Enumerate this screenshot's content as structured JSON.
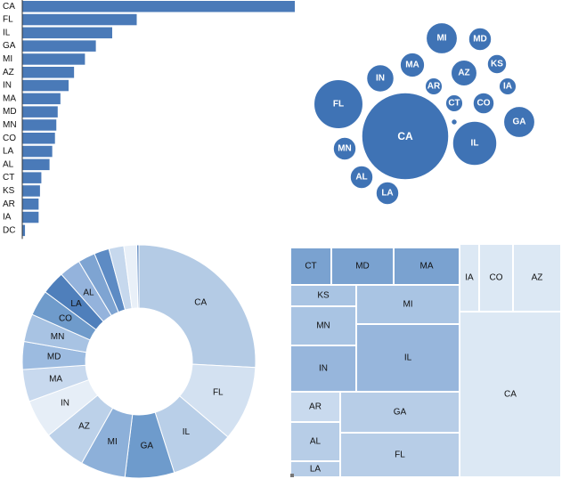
{
  "colors": {
    "bar": "#4a7ab8",
    "bubble": "#3f73b5",
    "bubble_stroke": "#ffffff",
    "label_light": "#ffffff",
    "label_dark": "#1a1a1a",
    "palette": [
      "#dde8f3",
      "#cbdcee",
      "#b7cde6",
      "#a3bfdf",
      "#8eb0d7",
      "#7aa2cf",
      "#6692c6",
      "#4f7fbb"
    ]
  },
  "chart_data": [
    {
      "type": "bar",
      "orientation": "horizontal",
      "categories": [
        "CA",
        "FL",
        "IL",
        "GA",
        "MI",
        "AZ",
        "IN",
        "MA",
        "MD",
        "MN",
        "CO",
        "LA",
        "AL",
        "CT",
        "KS",
        "AR",
        "IA",
        "DC"
      ],
      "values": [
        100,
        42,
        33,
        27,
        23,
        19,
        17,
        14,
        13,
        12.5,
        12,
        11,
        10,
        7,
        6.5,
        6,
        6,
        1
      ]
    },
    {
      "type": "bubble",
      "items": [
        {
          "label": "CA",
          "value": 100
        },
        {
          "label": "FL",
          "value": 32
        },
        {
          "label": "IL",
          "value": 26
        },
        {
          "label": "GA",
          "value": 13
        },
        {
          "label": "MI",
          "value": 13
        },
        {
          "label": "IN",
          "value": 10
        },
        {
          "label": "MA",
          "value": 8
        },
        {
          "label": "AZ",
          "value": 9
        },
        {
          "label": "MD",
          "value": 7
        },
        {
          "label": "MN",
          "value": 7
        },
        {
          "label": "KS",
          "value": 5
        },
        {
          "label": "AL",
          "value": 7
        },
        {
          "label": "LA",
          "value": 7
        },
        {
          "label": "IA",
          "value": 4
        },
        {
          "label": "AR",
          "value": 4
        },
        {
          "label": "CO",
          "value": 6
        },
        {
          "label": "CT",
          "value": 4
        },
        {
          "label": "",
          "value": 0.5
        }
      ]
    },
    {
      "type": "pie",
      "variant": "donut",
      "categories": [
        "CA",
        "FL",
        "IL",
        "GA",
        "MI",
        "AZ",
        "IN",
        "MA",
        "MD",
        "MN",
        "CO",
        "LA",
        "AL",
        "",
        "",
        "",
        "",
        ""
      ],
      "values": [
        87,
        35,
        30,
        23,
        21,
        20,
        18,
        15,
        13,
        13,
        12,
        11,
        10,
        8,
        7,
        7,
        6,
        1
      ]
    },
    {
      "type": "treemap",
      "items": [
        {
          "label": "CA",
          "value": 100
        },
        {
          "label": "FL",
          "value": 32
        },
        {
          "label": "IL",
          "value": 26
        },
        {
          "label": "GA",
          "value": 13
        },
        {
          "label": "MI",
          "value": 13
        },
        {
          "label": "IN",
          "value": 10
        },
        {
          "label": "MN",
          "value": 7
        },
        {
          "label": "MD",
          "value": 7
        },
        {
          "label": "MA",
          "value": 8
        },
        {
          "label": "AZ",
          "value": 9
        },
        {
          "label": "LA",
          "value": 7
        },
        {
          "label": "AL",
          "value": 7
        },
        {
          "label": "AR",
          "value": 4
        },
        {
          "label": "KS",
          "value": 5
        },
        {
          "label": "CT",
          "value": 4
        },
        {
          "label": "CO",
          "value": 6
        },
        {
          "label": "IA",
          "value": 4
        }
      ]
    }
  ]
}
